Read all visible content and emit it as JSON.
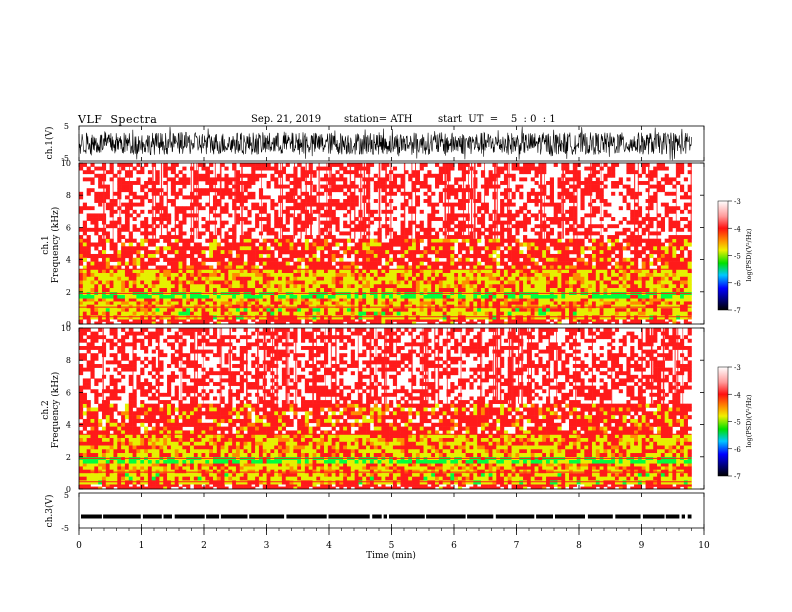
{
  "header": {
    "title": "VLF  Spectra",
    "date": "Sep. 21, 2019",
    "station": "station= ATH",
    "start_ut": "start  UT  =    5  : 0  : 1"
  },
  "colors": {
    "spectrum_low": "#00ff3c",
    "spectrum_mid": "#e6f000",
    "spectrum_high": "#ff1a1a",
    "background": "#ffffff",
    "waveform": "#000000"
  },
  "chart_data": [
    {
      "type": "line",
      "name": "ch1-waveform",
      "ylabel": "ch.1(V)",
      "yticks": [
        "5",
        "-5"
      ],
      "ylim": [
        -5,
        5
      ],
      "xlim": [
        0,
        9.8
      ],
      "note_values": "dense noisy waveform, amplitude about ±3 V"
    },
    {
      "type": "heatmap",
      "name": "ch1-spectrogram",
      "ylabel": "ch.1 Frequency (kHz)",
      "yticks": [
        "0",
        "2",
        "4",
        "6",
        "8",
        "10"
      ],
      "ylim": [
        0,
        10
      ],
      "xlim": [
        0,
        9.8
      ],
      "bands": [
        {
          "from": 0.0,
          "to": 0.3,
          "level": -3.8
        },
        {
          "from": 0.3,
          "to": 1.0,
          "level": -4.6
        },
        {
          "from": 1.0,
          "to": 1.6,
          "level": -4.3
        },
        {
          "from": 1.6,
          "to": 2.0,
          "level": -5.0
        },
        {
          "from": 2.0,
          "to": 3.4,
          "level": -4.4
        },
        {
          "from": 3.4,
          "to": 5.3,
          "level": -3.9
        },
        {
          "from": 5.3,
          "to": 10.0,
          "level": -3.3
        }
      ],
      "colorbar": {
        "label": "log(PSD)(V²/Hz)",
        "ticks": [
          "-3",
          "-4",
          "-5",
          "-6",
          "-7"
        ],
        "range": [
          -7,
          -3
        ]
      }
    },
    {
      "type": "heatmap",
      "name": "ch2-spectrogram",
      "ylabel": "ch.2 Frequency (kHz)",
      "yticks": [
        "0",
        "2",
        "4",
        "6",
        "8",
        "10"
      ],
      "ylim": [
        0,
        10
      ],
      "xlim": [
        0,
        9.8
      ],
      "bands": [
        {
          "from": 0.0,
          "to": 0.3,
          "level": -3.8
        },
        {
          "from": 0.3,
          "to": 1.0,
          "level": -4.6
        },
        {
          "from": 1.0,
          "to": 1.6,
          "level": -4.3
        },
        {
          "from": 1.6,
          "to": 2.0,
          "level": -5.0
        },
        {
          "from": 2.0,
          "to": 3.4,
          "level": -4.4
        },
        {
          "from": 3.4,
          "to": 5.3,
          "level": -3.9
        },
        {
          "from": 5.3,
          "to": 10.0,
          "level": -3.3
        }
      ],
      "colorbar": {
        "label": "log(PSD)(V²/Hz)",
        "ticks": [
          "-3",
          "-4",
          "-5",
          "-6",
          "-7"
        ],
        "range": [
          -7,
          -3
        ]
      }
    },
    {
      "type": "line",
      "name": "ch3-trace",
      "ylabel": "ch.3(V)",
      "yticks": [
        "5",
        "-5"
      ],
      "ylim": [
        -5,
        5
      ],
      "xlim": [
        0,
        9.8
      ],
      "level": -1.7
    }
  ],
  "xaxis": {
    "label": "Time  (min)",
    "ticks": [
      "0",
      "1",
      "2",
      "3",
      "4",
      "5",
      "6",
      "7",
      "8",
      "9",
      "10"
    ],
    "range": [
      0,
      10
    ]
  }
}
